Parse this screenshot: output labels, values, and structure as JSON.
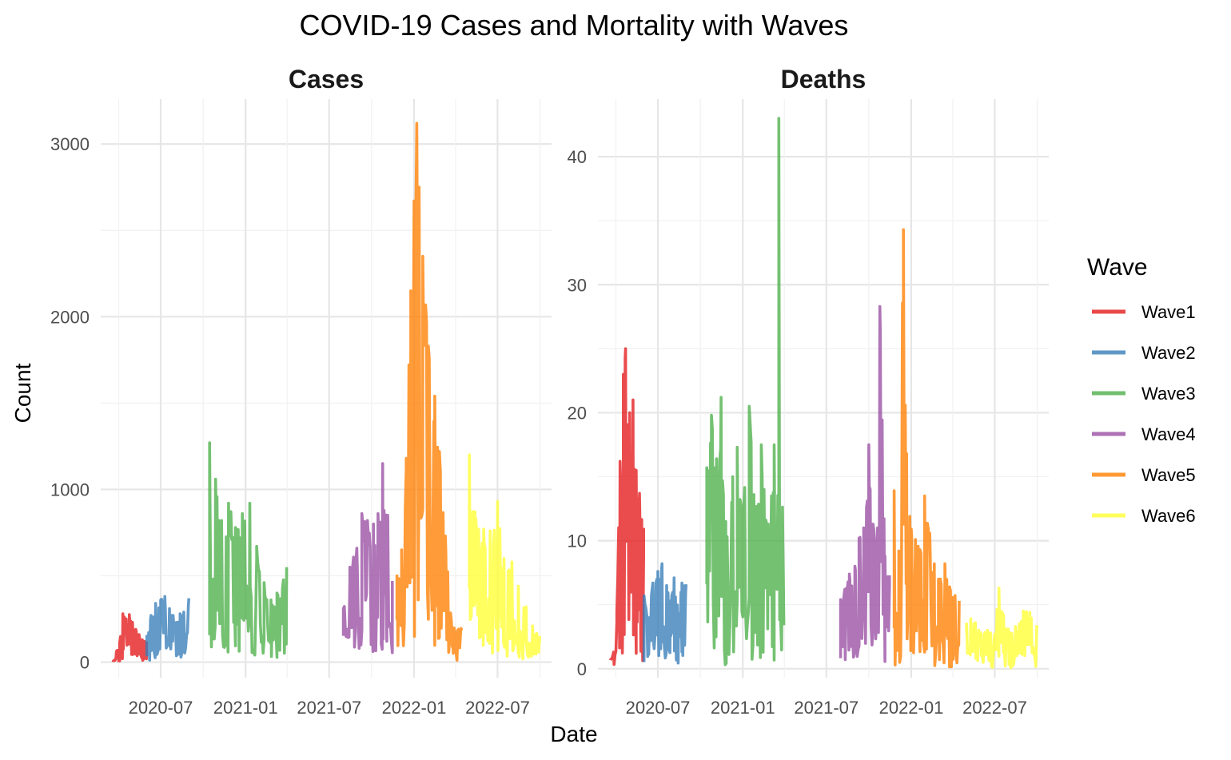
{
  "chart_data": {
    "type": "line",
    "title": "COVID-19 Cases and Mortality with Waves",
    "xlabel": "Date",
    "ylabel": "Count",
    "x_ticks": [
      "2020-07",
      "2021-01",
      "2021-07",
      "2022-01",
      "2022-07"
    ],
    "legend": {
      "title": "Wave",
      "position": "right",
      "entries": [
        {
          "name": "Wave1",
          "color": "#E41A1C"
        },
        {
          "name": "Wave2",
          "color": "#377EB8"
        },
        {
          "name": "Wave3",
          "color": "#4DAF4A"
        },
        {
          "name": "Wave4",
          "color": "#984EA3"
        },
        {
          "name": "Wave5",
          "color": "#FF7F00"
        },
        {
          "name": "Wave6",
          "color": "#FFFF33"
        }
      ]
    },
    "panels": [
      {
        "strip": "Cases",
        "y_ticks": [
          "0",
          "1000",
          "2000",
          "3000"
        ],
        "ylim": [
          -90,
          3260
        ],
        "series": [
          {
            "name": "Wave1",
            "start": "2020-03-20",
            "end": "2020-05-31",
            "points": [
              [
                "2020-03-20",
                5
              ],
              [
                "2020-03-27",
                60
              ],
              [
                "2020-04-03",
                110
              ],
              [
                "2020-04-10",
                280
              ],
              [
                "2020-04-17",
                250
              ],
              [
                "2020-04-24",
                275
              ],
              [
                "2020-05-01",
                230
              ],
              [
                "2020-05-08",
                190
              ],
              [
                "2020-05-15",
                160
              ],
              [
                "2020-05-22",
                130
              ],
              [
                "2020-05-31",
                120
              ]
            ]
          },
          {
            "name": "Wave2",
            "start": "2020-06-01",
            "end": "2020-08-31",
            "points": [
              [
                "2020-06-01",
                150
              ],
              [
                "2020-06-10",
                270
              ],
              [
                "2020-06-20",
                340
              ],
              [
                "2020-07-01",
                360
              ],
              [
                "2020-07-10",
                380
              ],
              [
                "2020-07-20",
                310
              ],
              [
                "2020-07-28",
                270
              ],
              [
                "2020-08-05",
                230
              ],
              [
                "2020-08-12",
                280
              ],
              [
                "2020-08-20",
                290
              ],
              [
                "2020-08-31",
                370
              ]
            ]
          },
          {
            "name": "Wave3",
            "start": "2020-10-15",
            "end": "2021-03-31",
            "points": [
              [
                "2020-10-15",
                1270
              ],
              [
                "2020-10-28",
                1060
              ],
              [
                "2020-11-10",
                820
              ],
              [
                "2020-11-25",
                920
              ],
              [
                "2020-12-10",
                780
              ],
              [
                "2020-12-25",
                860
              ],
              [
                "2021-01-10",
                920
              ],
              [
                "2021-01-25",
                670
              ],
              [
                "2021-02-10",
                460
              ],
              [
                "2021-02-25",
                360
              ],
              [
                "2021-03-10",
                400
              ],
              [
                "2021-03-31",
                550
              ]
            ]
          },
          {
            "name": "Wave4",
            "start": "2021-08-01",
            "end": "2021-11-15",
            "points": [
              [
                "2021-08-01",
                310
              ],
              [
                "2021-08-15",
                550
              ],
              [
                "2021-08-30",
                660
              ],
              [
                "2021-09-10",
                860
              ],
              [
                "2021-09-22",
                820
              ],
              [
                "2021-10-05",
                800
              ],
              [
                "2021-10-15",
                860
              ],
              [
                "2021-10-25",
                1150
              ],
              [
                "2021-11-05",
                850
              ],
              [
                "2021-11-15",
                470
              ]
            ]
          },
          {
            "name": "Wave5",
            "start": "2021-11-25",
            "end": "2022-04-15",
            "points": [
              [
                "2021-11-25",
                500
              ],
              [
                "2021-12-05",
                650
              ],
              [
                "2021-12-15",
                1180
              ],
              [
                "2021-12-25",
                2150
              ],
              [
                "2022-01-01",
                2670
              ],
              [
                "2022-01-07",
                3120
              ],
              [
                "2022-01-12",
                2750
              ],
              [
                "2022-01-20",
                2350
              ],
              [
                "2022-02-01",
                1830
              ],
              [
                "2022-02-15",
                1540
              ],
              [
                "2022-02-25",
                1220
              ],
              [
                "2022-03-10",
                730
              ],
              [
                "2022-03-25",
                200
              ],
              [
                "2022-04-15",
                200
              ]
            ]
          },
          {
            "name": "Wave6",
            "start": "2022-05-01",
            "end": "2022-09-30",
            "points": [
              [
                "2022-05-01",
                1200
              ],
              [
                "2022-05-15",
                830
              ],
              [
                "2022-06-01",
                770
              ],
              [
                "2022-06-15",
                760
              ],
              [
                "2022-07-01",
                930
              ],
              [
                "2022-07-15",
                600
              ],
              [
                "2022-08-01",
                580
              ],
              [
                "2022-08-15",
                440
              ],
              [
                "2022-09-01",
                320
              ],
              [
                "2022-09-15",
                210
              ],
              [
                "2022-09-30",
                150
              ]
            ]
          }
        ]
      },
      {
        "strip": "Deaths",
        "y_ticks": [
          "0",
          "10",
          "20",
          "30",
          "40"
        ],
        "ylim": [
          -0.7,
          44.5
        ],
        "series": [
          {
            "name": "Wave1",
            "start": "2020-03-20",
            "end": "2020-05-31",
            "points": [
              [
                "2020-03-20",
                0.7
              ],
              [
                "2020-03-27",
                1.3
              ],
              [
                "2020-04-03",
                4.5
              ],
              [
                "2020-04-10",
                16.2
              ],
              [
                "2020-04-17",
                23
              ],
              [
                "2020-04-22",
                25
              ],
              [
                "2020-05-01",
                20
              ],
              [
                "2020-05-08",
                21
              ],
              [
                "2020-05-15",
                15.5
              ],
              [
                "2020-05-22",
                13.7
              ],
              [
                "2020-05-31",
                11
              ]
            ]
          },
          {
            "name": "Wave2",
            "start": "2020-06-01",
            "end": "2020-08-31",
            "points": [
              [
                "2020-06-01",
                5.7
              ],
              [
                "2020-06-10",
                3.7
              ],
              [
                "2020-06-20",
                6.7
              ],
              [
                "2020-07-01",
                7.6
              ],
              [
                "2020-07-10",
                8.2
              ],
              [
                "2020-07-20",
                6.5
              ],
              [
                "2020-07-28",
                5.3
              ],
              [
                "2020-08-05",
                7.1
              ],
              [
                "2020-08-15",
                4.3
              ],
              [
                "2020-08-22",
                6.7
              ],
              [
                "2020-08-31",
                6.6
              ]
            ]
          },
          {
            "name": "Wave3",
            "start": "2020-10-15",
            "end": "2021-03-31",
            "points": [
              [
                "2020-10-15",
                15.7
              ],
              [
                "2020-10-25",
                19.8
              ],
              [
                "2020-11-05",
                16.4
              ],
              [
                "2020-11-15",
                21.2
              ],
              [
                "2020-11-25",
                11.5
              ],
              [
                "2020-12-10",
                15
              ],
              [
                "2020-12-20",
                17.3
              ],
              [
                "2021-01-01",
                12.5
              ],
              [
                "2021-01-15",
                20.5
              ],
              [
                "2021-01-25",
                13.6
              ],
              [
                "2021-02-10",
                17.5
              ],
              [
                "2021-02-25",
                11.3
              ],
              [
                "2021-03-10",
                17.5
              ],
              [
                "2021-03-20",
                43
              ],
              [
                "2021-03-31",
                3.4
              ]
            ]
          },
          {
            "name": "Wave4",
            "start": "2021-08-01",
            "end": "2021-11-15",
            "points": [
              [
                "2021-08-01",
                5.4
              ],
              [
                "2021-08-10",
                6.2
              ],
              [
                "2021-08-20",
                7.4
              ],
              [
                "2021-09-01",
                8
              ],
              [
                "2021-09-10",
                10.2
              ],
              [
                "2021-09-20",
                11
              ],
              [
                "2021-10-01",
                17.5
              ],
              [
                "2021-10-10",
                11.3
              ],
              [
                "2021-10-20",
                11
              ],
              [
                "2021-10-25",
                28.3
              ],
              [
                "2021-11-05",
                8.8
              ],
              [
                "2021-11-15",
                7.3
              ]
            ]
          },
          {
            "name": "Wave5",
            "start": "2021-11-25",
            "end": "2022-04-15",
            "points": [
              [
                "2021-11-25",
                13.9
              ],
              [
                "2021-12-05",
                9.2
              ],
              [
                "2021-12-15",
                34.3
              ],
              [
                "2021-12-22",
                16.8
              ],
              [
                "2022-01-01",
                10.9
              ],
              [
                "2022-01-10",
                10.1
              ],
              [
                "2022-01-20",
                9.3
              ],
              [
                "2022-01-30",
                13.5
              ],
              [
                "2022-02-10",
                10.6
              ],
              [
                "2022-02-20",
                8.2
              ],
              [
                "2022-03-01",
                7
              ],
              [
                "2022-03-15",
                8.2
              ],
              [
                "2022-03-25",
                6.4
              ],
              [
                "2022-04-15",
                5.3
              ]
            ]
          },
          {
            "name": "Wave6",
            "start": "2022-05-01",
            "end": "2022-09-30",
            "points": [
              [
                "2022-05-01",
                3.5
              ],
              [
                "2022-05-10",
                3.9
              ],
              [
                "2022-05-20",
                3.6
              ],
              [
                "2022-06-01",
                2.8
              ],
              [
                "2022-06-15",
                3
              ],
              [
                "2022-07-01",
                2.7
              ],
              [
                "2022-07-10",
                6.3
              ],
              [
                "2022-07-20",
                4.2
              ],
              [
                "2022-08-01",
                2.9
              ],
              [
                "2022-08-15",
                3.3
              ],
              [
                "2022-09-01",
                4.5
              ],
              [
                "2022-09-15",
                4.4
              ],
              [
                "2022-09-30",
                3.4
              ]
            ]
          }
        ]
      }
    ]
  }
}
